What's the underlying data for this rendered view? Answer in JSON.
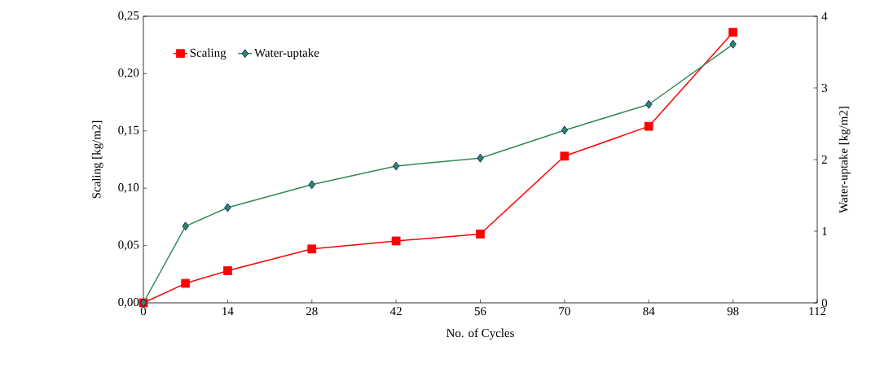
{
  "chart_data": {
    "type": "line",
    "xlabel": "No. of Cycles",
    "ylabel": "Scaling  [kg/m2]",
    "y2label": "Water-uptake  [kg/m2]",
    "xlim": [
      0,
      112
    ],
    "xticks": [
      0,
      14,
      28,
      42,
      56,
      70,
      84,
      98,
      112
    ],
    "ylim": [
      0,
      0.25
    ],
    "yticks": [
      {
        "value": 0,
        "label": "0,00"
      },
      {
        "value": 0.05,
        "label": "0,05"
      },
      {
        "value": 0.1,
        "label": "0,10"
      },
      {
        "value": 0.15,
        "label": "0,15"
      },
      {
        "value": 0.2,
        "label": "0,20"
      },
      {
        "value": 0.25,
        "label": "0,25"
      }
    ],
    "y2lim": [
      0,
      4
    ],
    "y2ticks": [
      0,
      1,
      2,
      3,
      4
    ],
    "legend": "top left",
    "grid": false,
    "series": [
      {
        "name": "Scaling",
        "color": "#ff0000",
        "marker": "square",
        "x": [
          0,
          7,
          14,
          28,
          42,
          56,
          70,
          84,
          98
        ],
        "values": [
          0,
          0.017,
          0.028,
          0.047,
          0.054,
          0.06,
          0.128,
          0.154,
          0.236
        ]
      },
      {
        "name": "Water-uptake",
        "color": "#2e8b57",
        "marker": "diamond",
        "axis": "y2",
        "x": [
          0,
          7,
          14,
          28,
          42,
          56,
          70,
          84,
          98
        ],
        "values": [
          0,
          1.07,
          1.33,
          1.65,
          1.91,
          2.02,
          2.41,
          2.77,
          3.61
        ]
      }
    ]
  }
}
